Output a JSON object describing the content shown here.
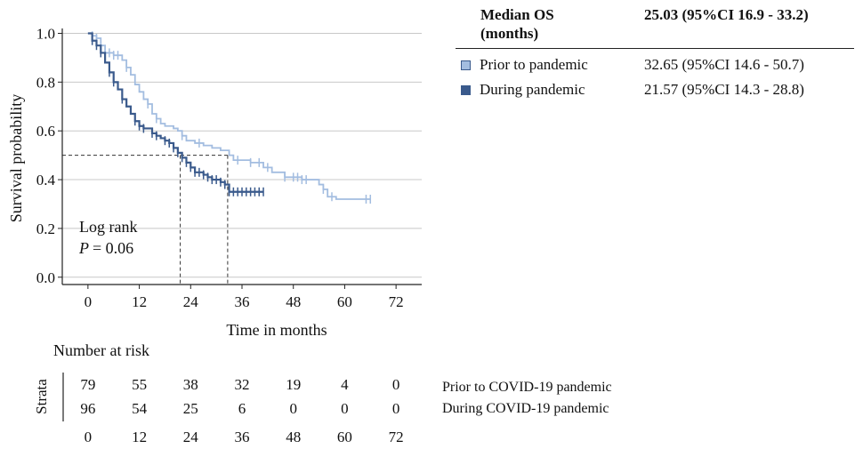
{
  "chart_data": {
    "type": "line",
    "subtype": "kaplan-meier",
    "title": "",
    "xlabel": "Time in months",
    "ylabel": "Survival probability",
    "xlim": [
      -6,
      78
    ],
    "ylim": [
      -0.03,
      1.02
    ],
    "x_ticks": [
      0,
      12,
      24,
      36,
      48,
      60,
      72
    ],
    "y_ticks": [
      0.0,
      0.2,
      0.4,
      0.6,
      0.8,
      1.0
    ],
    "y_tick_labels": [
      "0.0",
      "0.2",
      "0.4",
      "0.6",
      "0.8",
      "1.0"
    ],
    "grid": "horizontal",
    "annotation": {
      "line1": "Log rank",
      "p_label": "P",
      "p_value": "= 0.06"
    },
    "median_reference": {
      "y": 0.5,
      "x_values": [
        21.57,
        32.65
      ]
    },
    "series": [
      {
        "name": "Prior to pandemic",
        "color": "#a3bde0",
        "steps": [
          [
            0,
            1.0
          ],
          [
            1,
            0.99
          ],
          [
            2,
            0.98
          ],
          [
            3,
            0.95
          ],
          [
            4,
            0.92
          ],
          [
            6,
            0.91
          ],
          [
            8,
            0.89
          ],
          [
            9,
            0.86
          ],
          [
            10,
            0.83
          ],
          [
            11,
            0.79
          ],
          [
            12,
            0.76
          ],
          [
            13,
            0.73
          ],
          [
            14,
            0.71
          ],
          [
            15,
            0.67
          ],
          [
            16,
            0.65
          ],
          [
            17,
            0.63
          ],
          [
            18,
            0.62
          ],
          [
            20,
            0.61
          ],
          [
            21,
            0.6
          ],
          [
            22,
            0.58
          ],
          [
            23,
            0.56
          ],
          [
            25,
            0.55
          ],
          [
            27,
            0.54
          ],
          [
            29,
            0.53
          ],
          [
            31,
            0.52
          ],
          [
            33,
            0.5
          ],
          [
            34,
            0.48
          ],
          [
            36,
            0.48
          ],
          [
            38,
            0.47
          ],
          [
            41,
            0.45
          ],
          [
            43,
            0.43
          ],
          [
            46,
            0.41
          ],
          [
            50,
            0.4
          ],
          [
            54,
            0.38
          ],
          [
            55,
            0.36
          ],
          [
            56,
            0.33
          ],
          [
            58,
            0.32
          ],
          [
            66,
            0.32
          ]
        ],
        "censor_x": [
          1,
          2,
          3,
          5,
          6,
          7,
          9,
          14,
          16,
          22,
          26,
          35,
          38,
          40,
          42,
          46,
          48,
          49,
          50,
          51,
          55,
          57,
          65,
          66
        ]
      },
      {
        "name": "During pandemic",
        "color": "#3a5a8c",
        "steps": [
          [
            0,
            1.0
          ],
          [
            1,
            0.97
          ],
          [
            2,
            0.95
          ],
          [
            3,
            0.92
          ],
          [
            4,
            0.88
          ],
          [
            5,
            0.84
          ],
          [
            6,
            0.8
          ],
          [
            7,
            0.77
          ],
          [
            8,
            0.73
          ],
          [
            9,
            0.7
          ],
          [
            10,
            0.67
          ],
          [
            11,
            0.64
          ],
          [
            12,
            0.62
          ],
          [
            13,
            0.61
          ],
          [
            15,
            0.59
          ],
          [
            16,
            0.58
          ],
          [
            17,
            0.57
          ],
          [
            18,
            0.56
          ],
          [
            19,
            0.55
          ],
          [
            20,
            0.53
          ],
          [
            21,
            0.51
          ],
          [
            22,
            0.49
          ],
          [
            23,
            0.47
          ],
          [
            24,
            0.45
          ],
          [
            25,
            0.43
          ],
          [
            27,
            0.42
          ],
          [
            28,
            0.41
          ],
          [
            29,
            0.4
          ],
          [
            31,
            0.39
          ],
          [
            32,
            0.38
          ],
          [
            33,
            0.35
          ],
          [
            41,
            0.35
          ]
        ],
        "censor_x": [
          1,
          2,
          3,
          5,
          6,
          8,
          11,
          12,
          13,
          15,
          16,
          18,
          19,
          20,
          21,
          22,
          23,
          24,
          25,
          26,
          27,
          28,
          29,
          30,
          31,
          32,
          33,
          34,
          35,
          36,
          37,
          38,
          39,
          40,
          41
        ]
      }
    ]
  },
  "legend_table": {
    "header_col1_line1": "Median OS",
    "header_col1_line2": "(months)",
    "header_col2": "25.03 (95%CI 16.9 - 33.2)",
    "rows": [
      {
        "label": "Prior to pandemic",
        "value": "32.65 (95%CI 14.6 - 50.7)",
        "color": "#a3bde0"
      },
      {
        "label": "During pandemic",
        "value": "21.57 (95%CI 14.3 - 28.8)",
        "color": "#3a5a8c"
      }
    ]
  },
  "risk_table": {
    "title": "Number at risk",
    "strata_label": "Strata",
    "times": [
      "0",
      "12",
      "24",
      "36",
      "48",
      "60",
      "72"
    ],
    "rows": [
      {
        "label": "Prior to COVID-19 pandemic",
        "counts": [
          "79",
          "55",
          "38",
          "32",
          "19",
          "4",
          "0"
        ]
      },
      {
        "label": "During COVID-19 pandemic",
        "counts": [
          "96",
          "54",
          "25",
          "6",
          "0",
          "0",
          "0"
        ]
      }
    ]
  }
}
